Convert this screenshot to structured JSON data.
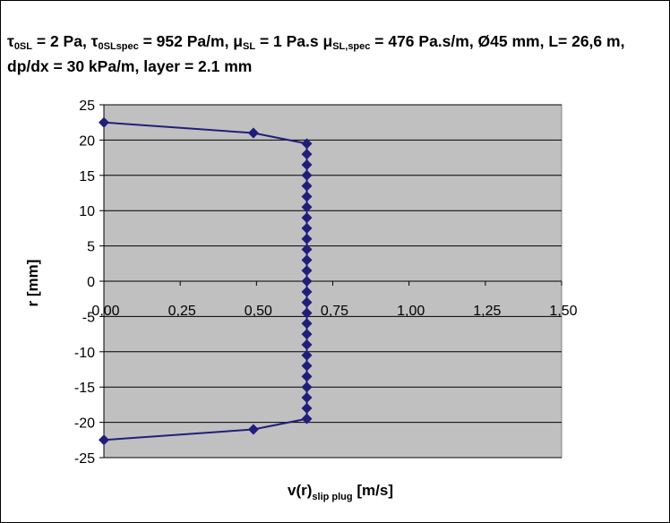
{
  "title": {
    "p1_tau": "τ",
    "p1_sub": "0SL",
    "p1_rest": " = 2 Pa, ",
    "p2_tau": "τ",
    "p2_sub": "0SLspec",
    "p2_rest": " = 952 Pa/m, ",
    "p3_mu": "μ",
    "p3_sub": "SL",
    "p3_rest": " = 1 Pa.s ",
    "p4_mu": "μ",
    "p4_sub": "SL,spec",
    "p4_rest": " = 476 Pa.s/m, Ø45 mm, L= 26,6 m, dp/dx = 30 kPa/m, layer = 2.1 mm"
  },
  "axes": {
    "xlabel_main": "v(r)",
    "xlabel_sub": "slip plug",
    "xlabel_unit": " [m/s]",
    "ylabel": "r [mm]"
  },
  "colors": {
    "plot_bg": "#c0c0c0",
    "series": "#1f1f7a",
    "grid": "#000000"
  },
  "chart_data": {
    "type": "scatter",
    "xlim": [
      0,
      1.5
    ],
    "ylim": [
      -25,
      25
    ],
    "x_ticks": [
      0,
      0.25,
      0.5,
      0.75,
      1.0,
      1.25,
      1.5
    ],
    "x_tick_labels": [
      "0,00",
      "0,25",
      "0,50",
      "0,75",
      "1,00",
      "1,25",
      "1,50"
    ],
    "y_ticks": [
      25,
      20,
      15,
      10,
      5,
      0,
      -5,
      -10,
      -15,
      -20,
      -25
    ],
    "y_tick_labels": [
      "25",
      "20",
      "15",
      "10",
      "5",
      "0",
      "-5",
      "-10",
      "-15",
      "-20",
      "-25"
    ],
    "grid": "horizontal",
    "legend": "none",
    "series": [
      {
        "marker": "diamond",
        "points": [
          [
            0.0,
            22.5
          ],
          [
            0.49,
            21.0
          ],
          [
            0.665,
            19.5
          ],
          [
            0.665,
            18.0
          ],
          [
            0.665,
            16.5
          ],
          [
            0.665,
            15.0
          ],
          [
            0.665,
            13.5
          ],
          [
            0.665,
            12.0
          ],
          [
            0.665,
            10.5
          ],
          [
            0.665,
            9.0
          ],
          [
            0.665,
            7.5
          ],
          [
            0.665,
            6.0
          ],
          [
            0.665,
            4.5
          ],
          [
            0.665,
            3.0
          ],
          [
            0.665,
            1.5
          ],
          [
            0.665,
            0.0
          ],
          [
            0.665,
            -1.5
          ],
          [
            0.665,
            -3.0
          ],
          [
            0.665,
            -4.5
          ],
          [
            0.665,
            -6.0
          ],
          [
            0.665,
            -7.5
          ],
          [
            0.665,
            -9.0
          ],
          [
            0.665,
            -10.5
          ],
          [
            0.665,
            -12.0
          ],
          [
            0.665,
            -13.5
          ],
          [
            0.665,
            -15.0
          ],
          [
            0.665,
            -16.5
          ],
          [
            0.665,
            -18.0
          ],
          [
            0.665,
            -19.5
          ],
          [
            0.49,
            -21.0
          ],
          [
            0.0,
            -22.5
          ]
        ]
      }
    ]
  }
}
